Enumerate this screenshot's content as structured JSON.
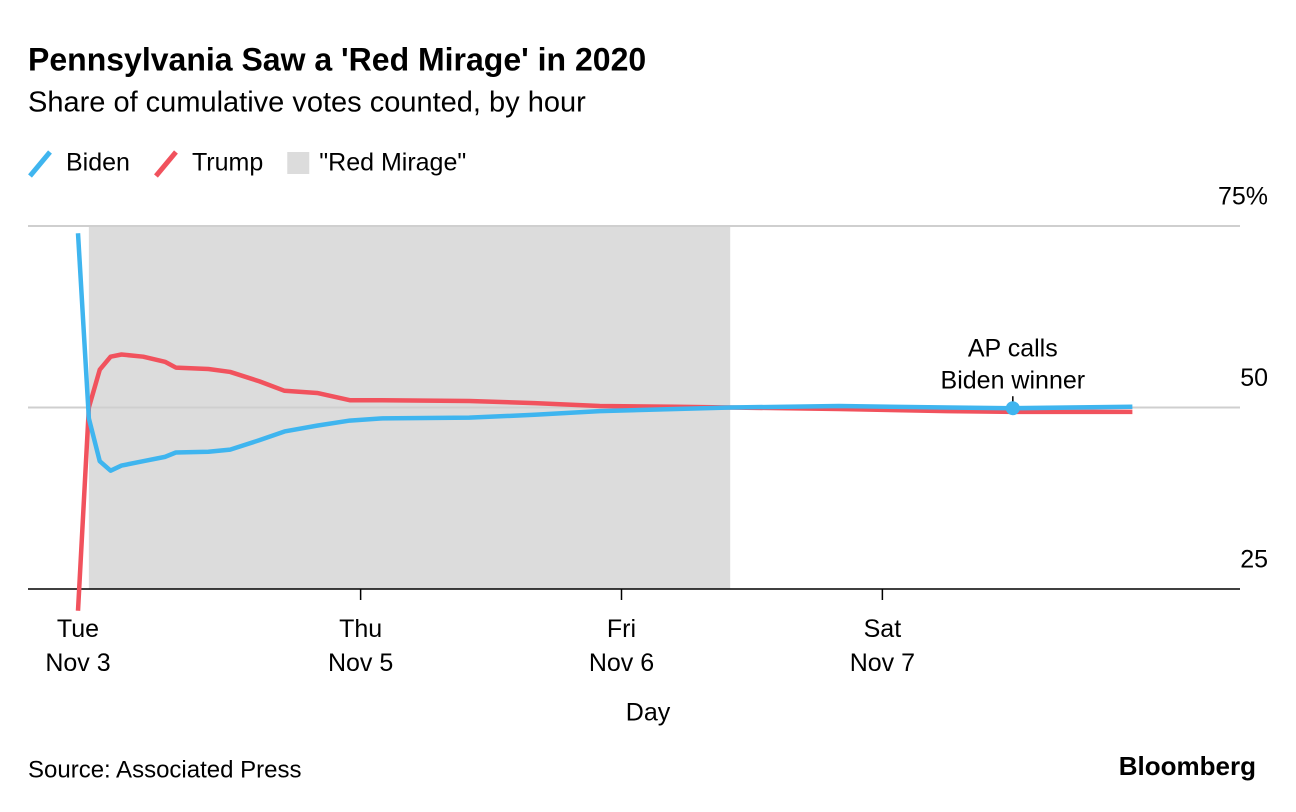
{
  "chart_data": {
    "type": "line",
    "title": "Pennsylvania Saw a 'Red Mirage' in 2020",
    "subtitle": "Share of cumulative votes counted, by hour",
    "x_label": "Day",
    "source": "Source: Associated Press",
    "brand": "Bloomberg",
    "x": [
      0,
      1,
      2,
      3,
      4,
      6,
      8,
      9,
      12,
      14,
      16.7,
      19,
      22,
      25,
      28,
      36,
      42,
      48,
      55,
      60,
      70,
      80,
      86,
      97
    ],
    "series": [
      {
        "name": "Biden",
        "color": "#3fb5ef",
        "values": [
          74,
          48.5,
          42.6,
          41.3,
          42,
          42.6,
          43.2,
          43.8,
          43.9,
          44.2,
          45.5,
          46.7,
          47.5,
          48.2,
          48.5,
          48.6,
          49,
          49.5,
          49.8,
          50,
          50.2,
          50,
          49.9,
          50.1
        ]
      },
      {
        "name": "Trump",
        "color": "#f1525d",
        "values": [
          22,
          50,
          55.2,
          57,
          57.3,
          57,
          56.3,
          55.5,
          55.3,
          54.9,
          53.6,
          52.3,
          52,
          51,
          51,
          50.9,
          50.6,
          50.2,
          50.1,
          50,
          49.8,
          49.5,
          49.4,
          49.4
        ]
      }
    ],
    "mirage": {
      "name": "\"Red Mirage\"",
      "start": 1,
      "end": 60,
      "color": "#dcdcdc"
    },
    "annotation": {
      "text": [
        "AP calls",
        "Biden winner"
      ],
      "x": 86,
      "y": 49.9
    },
    "xlim": [
      -4.6,
      106.9
    ],
    "xticks": [
      {
        "value": 0,
        "label": "Tue Nov 3"
      },
      {
        "value": 26,
        "label": "Thu Nov 5"
      },
      {
        "value": 50,
        "label": "Fri Nov 6"
      },
      {
        "value": 74,
        "label": "Sat Nov 7"
      }
    ],
    "ylim": [
      25,
      75
    ],
    "yticks": [
      {
        "value": 75,
        "label": "75%"
      },
      50,
      25
    ],
    "grid": true
  }
}
